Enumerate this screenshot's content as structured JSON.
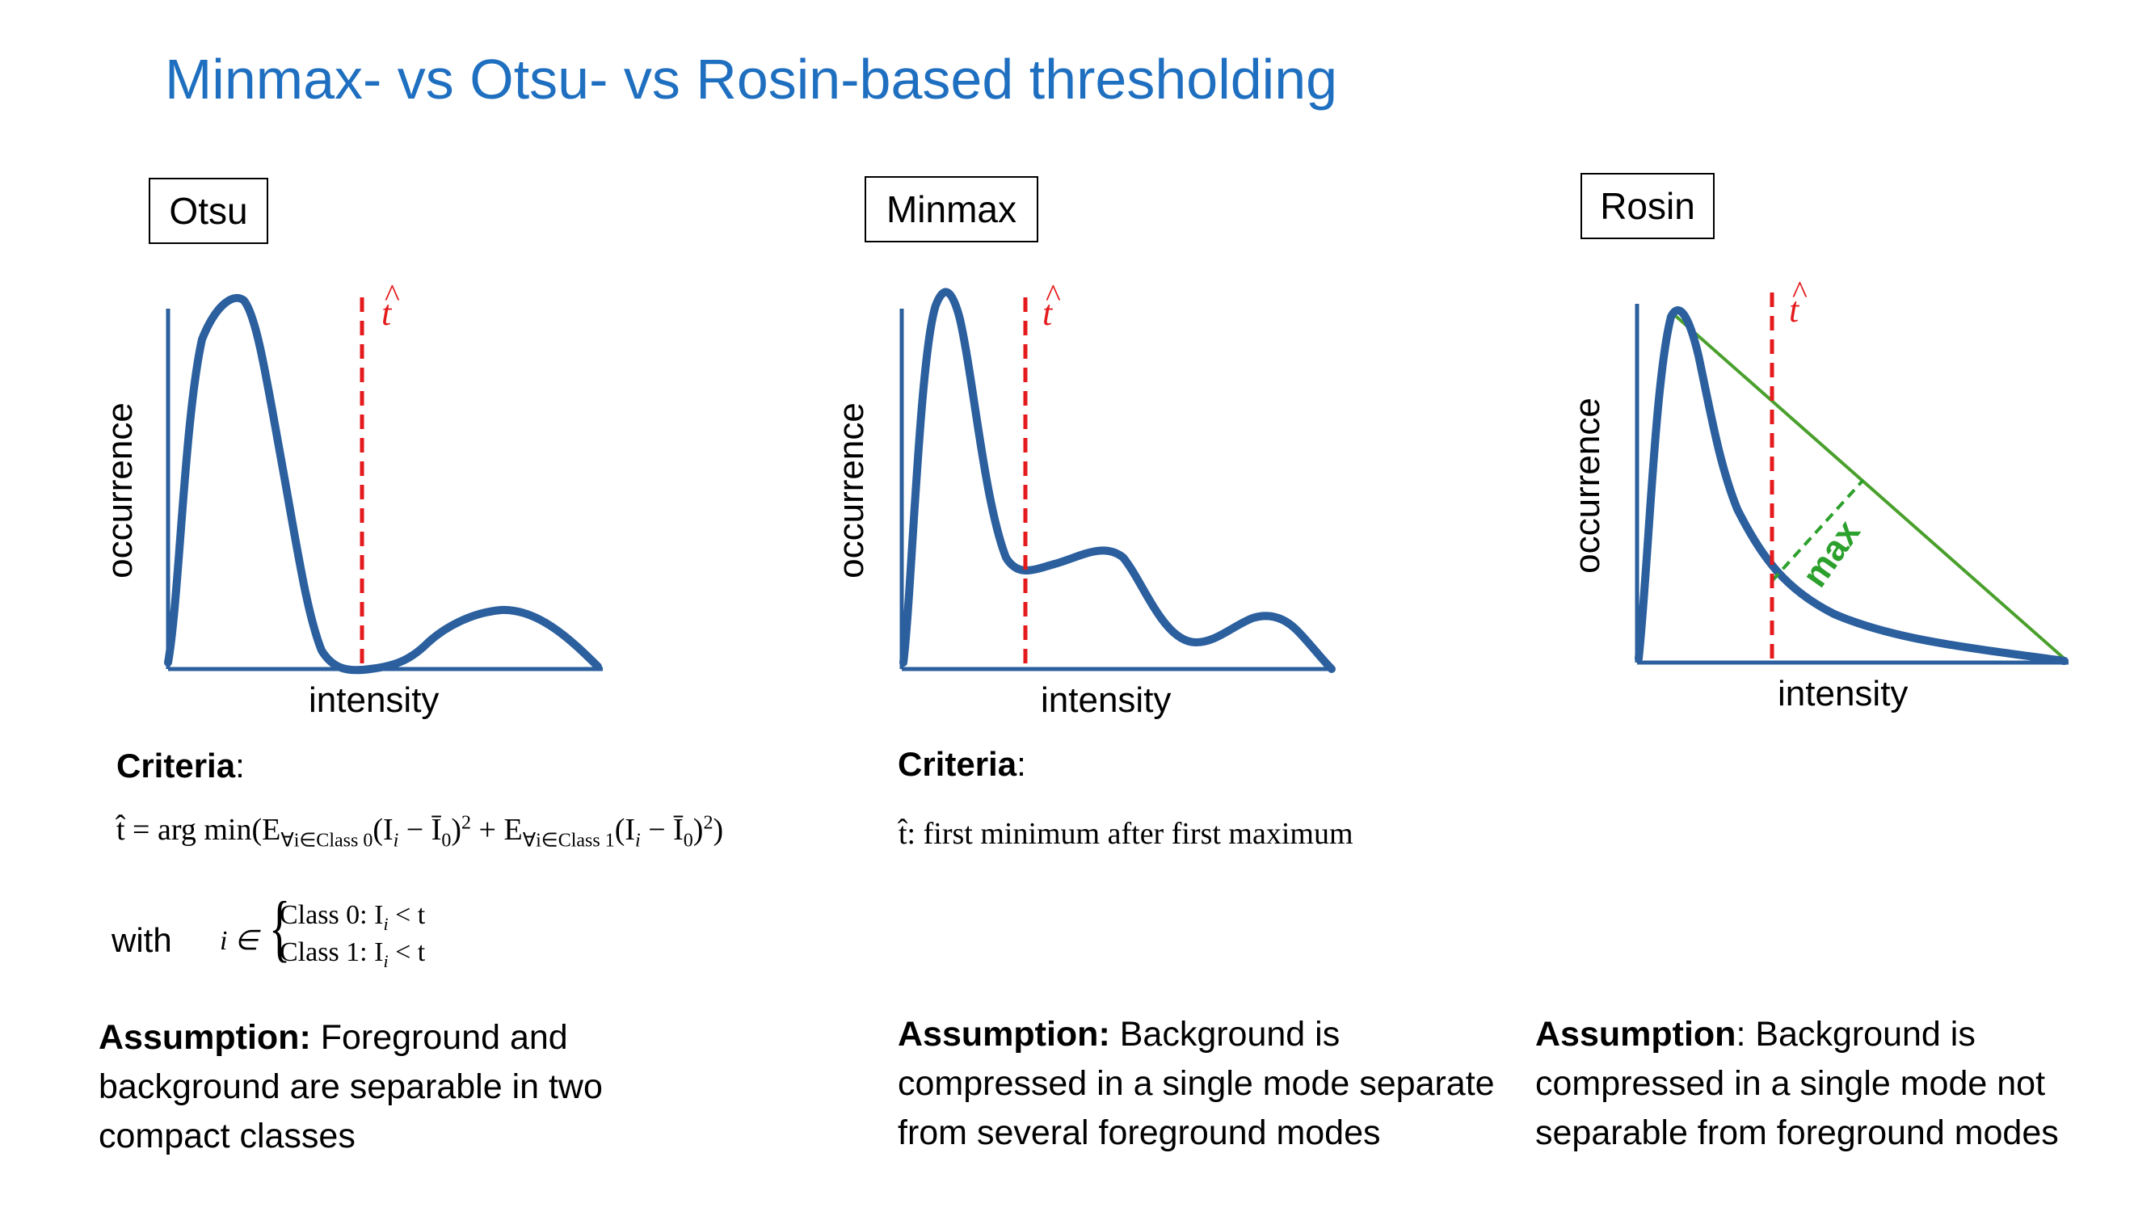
{
  "title": "Minmax- vs Otsu- vs Rosin-based thresholding",
  "colors": {
    "title": "#1f6fc0",
    "curve": "#2b5f9e",
    "threshold": "#e41a1c",
    "rosin_line": "#4aa02c"
  },
  "panels": {
    "otsu": {
      "label": "Otsu",
      "ylabel": "occurrence",
      "xlabel": "intensity",
      "threshold_symbol": "t",
      "threshold_hat": "^",
      "criteria_label": "Criteria",
      "criteria_colon": ":",
      "formula": {
        "lhs": "t̂ = arg min(E",
        "sub1": "∀i∈Class 0",
        "mid1": "(I",
        "sub_i": "i",
        "mid2": " − Ī",
        "sub0": "0",
        "mid3": ")",
        "sup2": "2",
        "mid4": " + E",
        "sub2": "∀i∈Class 1",
        "mid5": "(I",
        "mid6": " − Ī",
        "end": ")"
      },
      "with_label": "with",
      "cases_prefix": "i ∈",
      "case0": "Class 0: I",
      "case1": "Class 1: I",
      "case_rel": " < t",
      "assumption_bold": "Assumption:",
      "assumption_text": " Foreground and background are separable in two compact classes"
    },
    "minmax": {
      "label": "Minmax",
      "ylabel": "occurrence",
      "xlabel": "intensity",
      "threshold_symbol": "t",
      "threshold_hat": "^",
      "criteria_label": "Criteria",
      "criteria_colon": ":",
      "formula": "t̂: first minimum after first maximum",
      "assumption_bold": "Assumption:",
      "assumption_text": " Background is compressed in a single mode separate from several foreground modes"
    },
    "rosin": {
      "label": "Rosin",
      "ylabel": "occurrence",
      "xlabel": "intensity",
      "threshold_symbol": "t",
      "threshold_hat": "^",
      "max_label": "max",
      "assumption_bold": "Assumption",
      "assumption_colon": ":",
      "assumption_text": " Background is compressed in a single mode not separable from foreground modes"
    }
  }
}
